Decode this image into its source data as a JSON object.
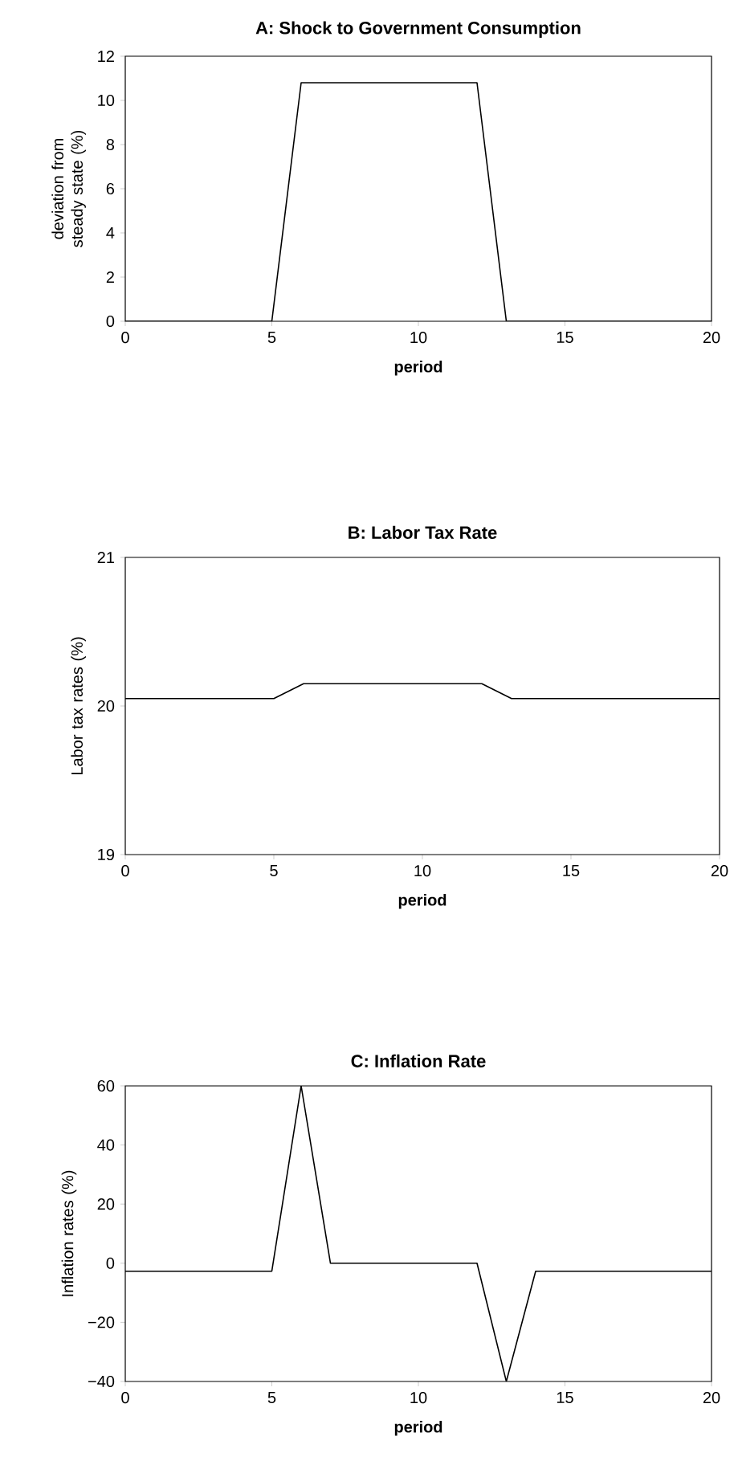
{
  "chart_data": [
    {
      "type": "line",
      "title": "A: Shock to Government Consumption",
      "xlabel": "period",
      "ylabel": "deviation from steady state (%)",
      "color": "#000000",
      "x": [
        0,
        5,
        6,
        12,
        13,
        20
      ],
      "values": [
        0,
        0,
        10.8,
        10.8,
        0,
        0
      ],
      "xlim": [
        0,
        20
      ],
      "ylim": [
        0,
        12
      ],
      "xticks": [
        0,
        5,
        10,
        15,
        20
      ],
      "yticks": [
        0,
        2,
        4,
        6,
        8,
        10,
        12
      ]
    },
    {
      "type": "line",
      "title": "B: Labor Tax Rate",
      "xlabel": "period",
      "ylabel": "Labor tax rates (%)",
      "color": "#000000",
      "x": [
        0,
        5,
        6,
        12,
        13,
        20
      ],
      "values": [
        20.05,
        20.05,
        20.15,
        20.15,
        20.05,
        20.05
      ],
      "xlim": [
        0,
        20
      ],
      "ylim": [
        19,
        21
      ],
      "xticks": [
        0,
        5,
        10,
        15,
        20
      ],
      "yticks": [
        19,
        20,
        21
      ]
    },
    {
      "type": "line",
      "title": "C: Inflation Rate",
      "xlabel": "period",
      "ylabel": "Inflation rates (%)",
      "color": "#000000",
      "x": [
        0,
        5,
        6,
        7,
        12,
        13,
        14,
        20
      ],
      "values": [
        -2.7,
        -2.7,
        60,
        0,
        0,
        -40,
        -2.7,
        -2.7
      ],
      "xlim": [
        0,
        20
      ],
      "ylim": [
        -40,
        60
      ],
      "xticks": [
        0,
        5,
        10,
        15,
        20
      ],
      "yticks": [
        {
          "value": -40,
          "label": "−40"
        },
        {
          "value": -20,
          "label": "−20"
        },
        0,
        20,
        40,
        60
      ]
    }
  ]
}
